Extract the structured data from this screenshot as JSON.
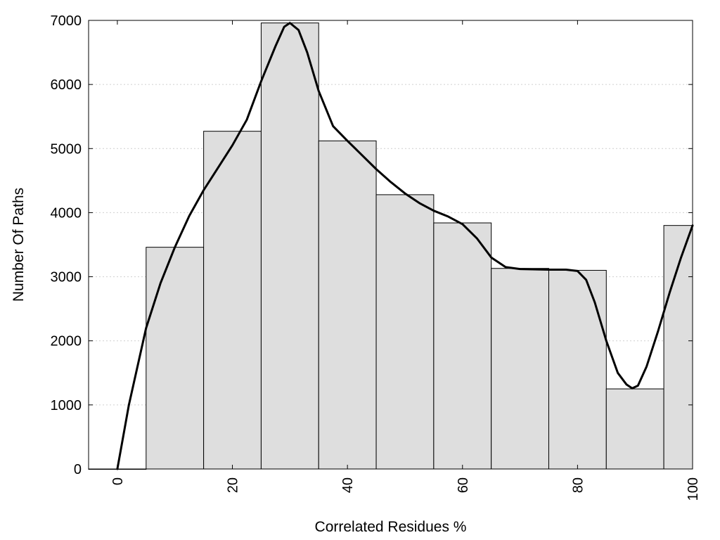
{
  "chart_data": {
    "type": "bar",
    "xlabel": "Correlated Residues %",
    "ylabel": "Number Of Paths",
    "xlim": [
      -5,
      100
    ],
    "ylim": [
      0,
      7000
    ],
    "x_ticks": [
      0,
      20,
      40,
      60,
      80,
      100
    ],
    "y_ticks": [
      0,
      1000,
      2000,
      3000,
      4000,
      5000,
      6000,
      7000
    ],
    "grid": "horizontal dotted",
    "bar_color": "#dedede",
    "bars": [
      {
        "x": 0,
        "value": 0
      },
      {
        "x": 10,
        "value": 3460
      },
      {
        "x": 20,
        "value": 5270
      },
      {
        "x": 30,
        "value": 6960
      },
      {
        "x": 40,
        "value": 5120
      },
      {
        "x": 50,
        "value": 4280
      },
      {
        "x": 60,
        "value": 3840
      },
      {
        "x": 70,
        "value": 3130
      },
      {
        "x": 80,
        "value": 3100
      },
      {
        "x": 90,
        "value": 1250
      },
      {
        "x": 100,
        "value": 3800
      }
    ],
    "curve": [
      [
        0,
        0
      ],
      [
        2,
        1000
      ],
      [
        5,
        2200
      ],
      [
        7.5,
        2900
      ],
      [
        10,
        3460
      ],
      [
        12.5,
        3950
      ],
      [
        15,
        4350
      ],
      [
        17.5,
        4700
      ],
      [
        20,
        5050
      ],
      [
        22.5,
        5450
      ],
      [
        25,
        6050
      ],
      [
        27.5,
        6600
      ],
      [
        29,
        6900
      ],
      [
        30,
        6960
      ],
      [
        31.5,
        6850
      ],
      [
        33,
        6500
      ],
      [
        35,
        5900
      ],
      [
        37.5,
        5350
      ],
      [
        40,
        5120
      ],
      [
        42.5,
        4900
      ],
      [
        45,
        4680
      ],
      [
        47.5,
        4480
      ],
      [
        50,
        4300
      ],
      [
        52.5,
        4150
      ],
      [
        55,
        4030
      ],
      [
        57.5,
        3940
      ],
      [
        60,
        3820
      ],
      [
        62.5,
        3600
      ],
      [
        65,
        3300
      ],
      [
        67.5,
        3150
      ],
      [
        70,
        3120
      ],
      [
        75,
        3110
      ],
      [
        78,
        3110
      ],
      [
        80,
        3090
      ],
      [
        81.5,
        2950
      ],
      [
        83,
        2600
      ],
      [
        85,
        2000
      ],
      [
        87,
        1500
      ],
      [
        88.5,
        1320
      ],
      [
        89.5,
        1260
      ],
      [
        90.5,
        1300
      ],
      [
        92,
        1600
      ],
      [
        94,
        2150
      ],
      [
        96,
        2750
      ],
      [
        98,
        3300
      ],
      [
        100,
        3800
      ]
    ]
  }
}
